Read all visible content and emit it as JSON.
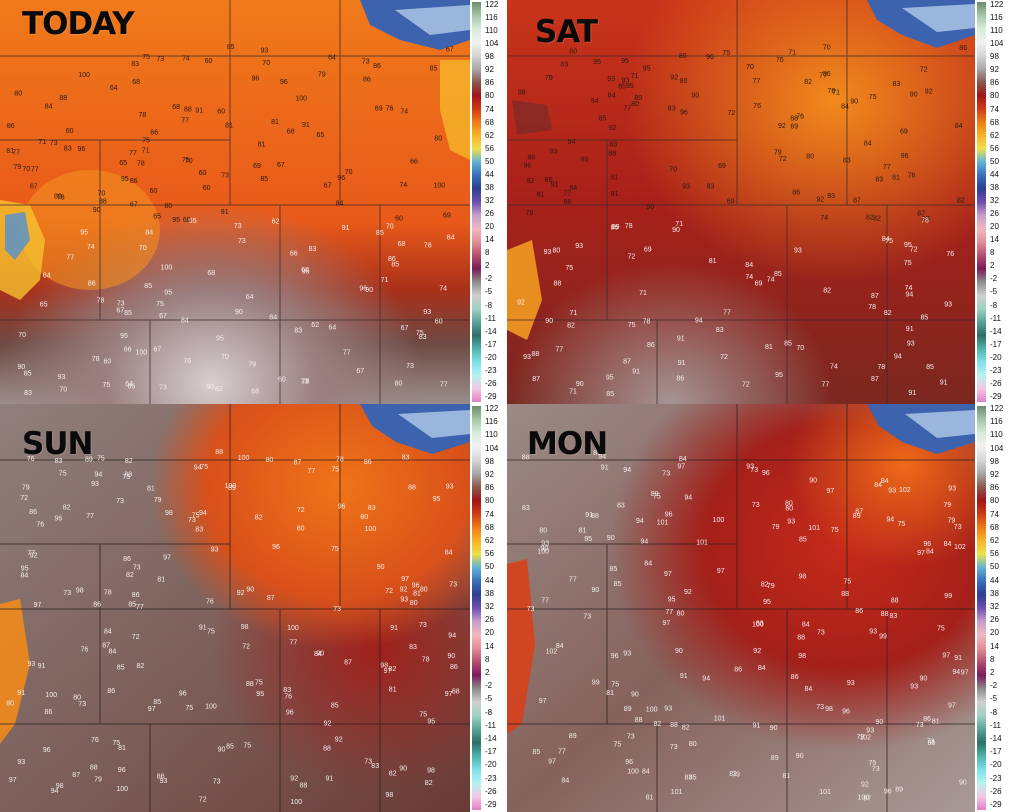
{
  "panels": [
    {
      "id": "today",
      "label": "TODAY",
      "theme": "warm",
      "stations": [
        "71",
        "70",
        "73",
        "75",
        "76",
        "77",
        "78",
        "79",
        "80",
        "81",
        "82",
        "83",
        "84",
        "85",
        "86",
        "88",
        "90",
        "91",
        "93",
        "95",
        "96",
        "100",
        "67",
        "68",
        "69",
        "72",
        "74",
        "65",
        "66",
        "64",
        "60",
        "62"
      ]
    },
    {
      "id": "sat",
      "label": "SAT",
      "theme": "hot",
      "stations": [
        "69",
        "70",
        "71",
        "72",
        "74",
        "75",
        "76",
        "77",
        "78",
        "79",
        "80",
        "81",
        "82",
        "83",
        "84",
        "85",
        "86",
        "87",
        "88",
        "89",
        "90",
        "91",
        "92",
        "93",
        "94",
        "95",
        "96"
      ]
    },
    {
      "id": "sun",
      "label": "SUN",
      "theme": "very-hot",
      "stations": [
        "72",
        "73",
        "75",
        "76",
        "77",
        "78",
        "79",
        "80",
        "81",
        "82",
        "83",
        "84",
        "85",
        "86",
        "87",
        "88",
        "89",
        "90",
        "91",
        "92",
        "93",
        "94",
        "95",
        "96",
        "97",
        "98",
        "100"
      ]
    },
    {
      "id": "mon",
      "label": "MON",
      "theme": "very-hot",
      "stations": [
        "73",
        "75",
        "77",
        "79",
        "80",
        "81",
        "82",
        "83",
        "84",
        "85",
        "86",
        "87",
        "88",
        "89",
        "90",
        "91",
        "92",
        "93",
        "94",
        "95",
        "96",
        "97",
        "98",
        "99",
        "100",
        "101",
        "102"
      ]
    }
  ],
  "colorbar_ticks": [
    "122",
    "116",
    "110",
    "104",
    "98",
    "92",
    "86",
    "80",
    "74",
    "68",
    "62",
    "56",
    "50",
    "44",
    "38",
    "32",
    "26",
    "20",
    "14",
    "8",
    "2",
    "-2",
    "-5",
    "-8",
    "-11",
    "-14",
    "-17",
    "-20",
    "-23",
    "-26",
    "-29"
  ],
  "colorbar_colors": [
    "#6d8b70",
    "#a4c6a6",
    "#d8ebd8",
    "#f1f1f1",
    "#d6d6d6",
    "#a9a9a9",
    "#8a5a50",
    "#a0151a",
    "#cf3a14",
    "#ef7a18",
    "#f8b226",
    "#eee04a",
    "#5fb3d6",
    "#3a6fb8",
    "#2e3f8e",
    "#6f4fb0",
    "#c69ec9",
    "#f2b7c0",
    "#e28e98",
    "#b54f6f",
    "#7a1c5a",
    "#8d8d8d",
    "#cfcfcf",
    "#9fd1c4",
    "#5aa397",
    "#2c6f68",
    "#4fb3a8",
    "#7fe0e8",
    "#b5f2f0",
    "#f4c8e4",
    "#e27fc3"
  ]
}
